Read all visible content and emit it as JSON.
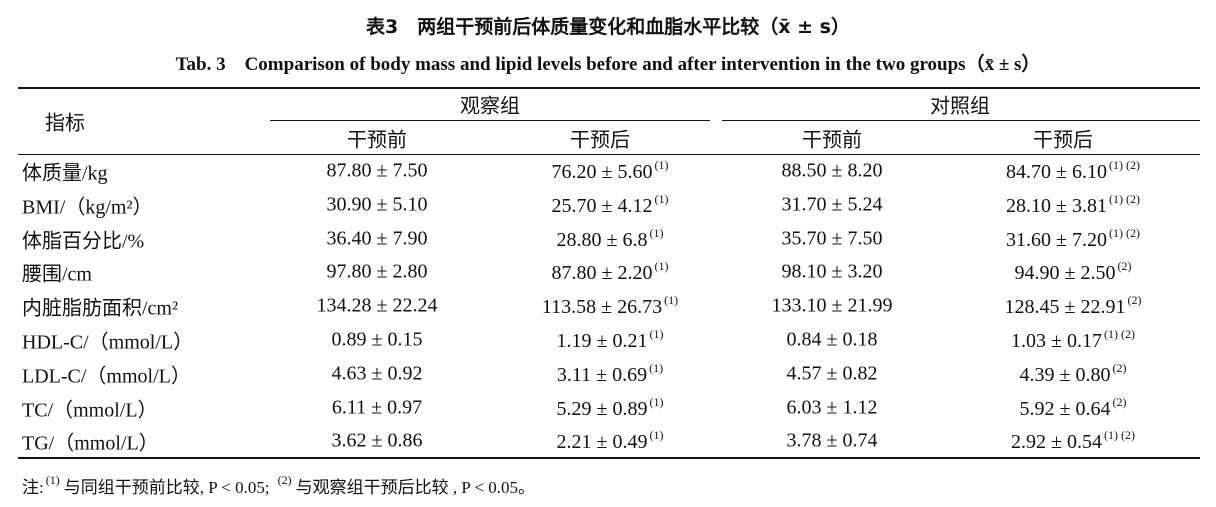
{
  "title_cn": "表3　两组干预前后体质量变化和血脂水平比较（x̄ ± s）",
  "title_en": "Tab. 3　Comparison of body mass and lipid levels before and after intervention in the two groups（x̄ ± s）",
  "header": {
    "indicator": "指标",
    "groups": [
      "观察组",
      "对照组"
    ],
    "phases": [
      "干预前",
      "干预后",
      "干预前",
      "干预后"
    ]
  },
  "table": {
    "rows": [
      {
        "label": "体质量/kg",
        "cells": [
          {
            "value": "87.80 ± 7.50"
          },
          {
            "value": "76.20 ± 5.60",
            "note": "(1)"
          },
          {
            "value": "88.50 ± 8.20"
          },
          {
            "value": "84.70 ± 6.10",
            "note": "(1) (2)"
          }
        ]
      },
      {
        "label": "BMI/（kg/m²）",
        "cells": [
          {
            "value": "30.90 ± 5.10"
          },
          {
            "value": "25.70 ± 4.12",
            "note": "(1)"
          },
          {
            "value": "31.70 ± 5.24"
          },
          {
            "value": "28.10 ± 3.81",
            "note": "(1) (2)"
          }
        ]
      },
      {
        "label": "体脂百分比/%",
        "cells": [
          {
            "value": "36.40 ± 7.90"
          },
          {
            "value": "28.80 ± 6.8",
            "note": "(1)"
          },
          {
            "value": "35.70 ± 7.50"
          },
          {
            "value": "31.60 ± 7.20",
            "note": "(1) (2)"
          }
        ]
      },
      {
        "label": "腰围/cm",
        "cells": [
          {
            "value": "97.80 ± 2.80"
          },
          {
            "value": "87.80 ± 2.20",
            "note": "(1)"
          },
          {
            "value": "98.10 ± 3.20"
          },
          {
            "value": "94.90 ± 2.50",
            "note": "(2)"
          }
        ]
      },
      {
        "label": "内脏脂肪面积/cm²",
        "cells": [
          {
            "value": "134.28 ± 22.24"
          },
          {
            "value": "113.58 ± 26.73",
            "note": "(1)"
          },
          {
            "value": "133.10 ± 21.99"
          },
          {
            "value": "128.45 ± 22.91",
            "note": "(2)"
          }
        ]
      },
      {
        "label": "HDL-C/（mmol/L）",
        "cells": [
          {
            "value": "0.89 ± 0.15"
          },
          {
            "value": "1.19 ± 0.21",
            "note": "(1)"
          },
          {
            "value": "0.84 ± 0.18"
          },
          {
            "value": "1.03 ± 0.17",
            "note": "(1) (2)"
          }
        ]
      },
      {
        "label": "LDL-C/（mmol/L）",
        "cells": [
          {
            "value": "4.63 ± 0.92"
          },
          {
            "value": "3.11 ± 0.69",
            "note": "(1)"
          },
          {
            "value": "4.57 ± 0.82"
          },
          {
            "value": "4.39 ± 0.80",
            "note": "(2)"
          }
        ]
      },
      {
        "label": "TC/（mmol/L）",
        "cells": [
          {
            "value": "6.11 ± 0.97"
          },
          {
            "value": "5.29 ± 0.89",
            "note": "(1)"
          },
          {
            "value": "6.03 ± 1.12"
          },
          {
            "value": "5.92 ± 0.64",
            "note": "(2)"
          }
        ]
      },
      {
        "label": "TG/（mmol/L）",
        "cells": [
          {
            "value": "3.62 ± 0.86"
          },
          {
            "value": "2.21 ± 0.49",
            "note": "(1)"
          },
          {
            "value": "3.78 ± 0.74"
          },
          {
            "value": "2.92 ± 0.54",
            "note": "(1) (2)"
          }
        ]
      }
    ]
  },
  "footnote": {
    "label": "注:",
    "items": [
      {
        "mark": "(1)",
        "text": "与同组干预前比较, P < 0.05;"
      },
      {
        "mark": "(2)",
        "text": "与观察组干预后比较 , P < 0.05。"
      }
    ]
  }
}
